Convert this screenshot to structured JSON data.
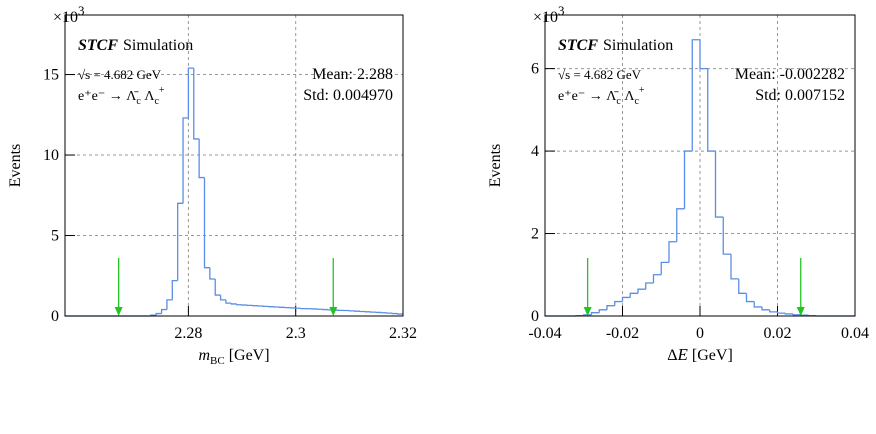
{
  "chart_data": [
    {
      "type": "histogram",
      "multiplier": {
        "base": "×10",
        "power": "3"
      },
      "label_experiment": "STCF",
      "label_simulation": "Simulation",
      "label_energy": "√s = 4.682 GeV",
      "label_process": [
        "e⁺e⁻ → Λ̄",
        "c",
        " Λ",
        "c",
        "+"
      ],
      "stat_mean": "Mean: 2.288",
      "stat_std": "Std: 0.004970",
      "x_label": [
        "m",
        "BC",
        " [GeV]"
      ],
      "y_label": "Events",
      "xlim": [
        2.257,
        2.32
      ],
      "ylim": [
        0,
        18.7
      ],
      "xticks": [
        2.28,
        2.3,
        2.32
      ],
      "yticks": [
        0,
        5,
        10,
        15
      ],
      "grid": true,
      "color": "#5b8ee6",
      "arrow_color": "#22c422",
      "arrows": [
        2.267,
        2.307
      ],
      "bins": [
        2.257,
        2.258,
        2.259,
        2.26,
        2.261,
        2.262,
        2.263,
        2.264,
        2.265,
        2.266,
        2.267,
        2.268,
        2.269,
        2.27,
        2.271,
        2.272,
        2.273,
        2.274,
        2.275,
        2.276,
        2.277,
        2.278,
        2.279,
        2.28,
        2.281,
        2.282,
        2.283,
        2.284,
        2.285,
        2.286,
        2.287,
        2.288,
        2.289,
        2.29,
        2.291,
        2.292,
        2.293,
        2.294,
        2.295,
        2.296,
        2.297,
        2.298,
        2.299,
        2.3,
        2.301,
        2.302,
        2.303,
        2.304,
        2.305,
        2.306,
        2.307,
        2.308,
        2.309,
        2.31,
        2.311,
        2.312,
        2.313,
        2.314,
        2.315,
        2.316,
        2.317,
        2.318,
        2.319,
        2.32
      ],
      "values": [
        0,
        0,
        0,
        0,
        0,
        0,
        0,
        0,
        0,
        0,
        0,
        0,
        0,
        0,
        0,
        0,
        0.05,
        0.15,
        0.4,
        1.0,
        2.2,
        7.0,
        12.3,
        15.4,
        11.0,
        8.6,
        3.0,
        2.3,
        1.3,
        1.0,
        0.8,
        0.75,
        0.7,
        0.68,
        0.66,
        0.64,
        0.62,
        0.6,
        0.58,
        0.56,
        0.54,
        0.52,
        0.5,
        0.48,
        0.46,
        0.45,
        0.44,
        0.42,
        0.4,
        0.38,
        0.36,
        0.35,
        0.34,
        0.32,
        0.3,
        0.28,
        0.26,
        0.24,
        0.22,
        0.2,
        0.18,
        0.15,
        0.12
      ]
    },
    {
      "type": "histogram",
      "multiplier": {
        "base": "×10",
        "power": "3"
      },
      "label_experiment": "STCF",
      "label_simulation": "Simulation",
      "label_energy": "√s = 4.682 GeV",
      "label_process": [
        "e⁺e⁻ → Λ̄",
        "c",
        " Λ",
        "c",
        "+"
      ],
      "stat_mean": "Mean: -0.002282",
      "stat_std": "Std: 0.007152",
      "x_label": [
        "Δ",
        "E",
        " [GeV]"
      ],
      "y_label": "Events",
      "xlim": [
        -0.04,
        0.04
      ],
      "ylim": [
        0,
        7.3
      ],
      "xticks": [
        -0.04,
        -0.02,
        0,
        0.02,
        0.04
      ],
      "yticks": [
        0,
        2,
        4,
        6
      ],
      "grid": true,
      "color": "#5b8ee6",
      "arrow_color": "#22c422",
      "arrows": [
        -0.029,
        0.026
      ],
      "bins": [
        -0.04,
        -0.038,
        -0.036,
        -0.034,
        -0.032,
        -0.03,
        -0.028,
        -0.026,
        -0.024,
        -0.022,
        -0.02,
        -0.018,
        -0.016,
        -0.014,
        -0.012,
        -0.01,
        -0.008,
        -0.006,
        -0.004,
        -0.002,
        0,
        0.002,
        0.004,
        0.006,
        0.008,
        0.01,
        0.012,
        0.014,
        0.016,
        0.018,
        0.02,
        0.022,
        0.024,
        0.026,
        0.028,
        0.03,
        0.032,
        0.034,
        0.036,
        0.038,
        0.04
      ],
      "values": [
        0,
        0,
        0,
        0,
        0.01,
        0.03,
        0.08,
        0.15,
        0.25,
        0.35,
        0.45,
        0.55,
        0.65,
        0.8,
        1.0,
        1.3,
        1.8,
        2.6,
        4.0,
        6.7,
        6.0,
        4.0,
        2.4,
        1.5,
        0.9,
        0.55,
        0.35,
        0.22,
        0.15,
        0.1,
        0.07,
        0.05,
        0.03,
        0.02,
        0.01,
        0,
        0,
        0,
        0,
        0
      ]
    }
  ]
}
